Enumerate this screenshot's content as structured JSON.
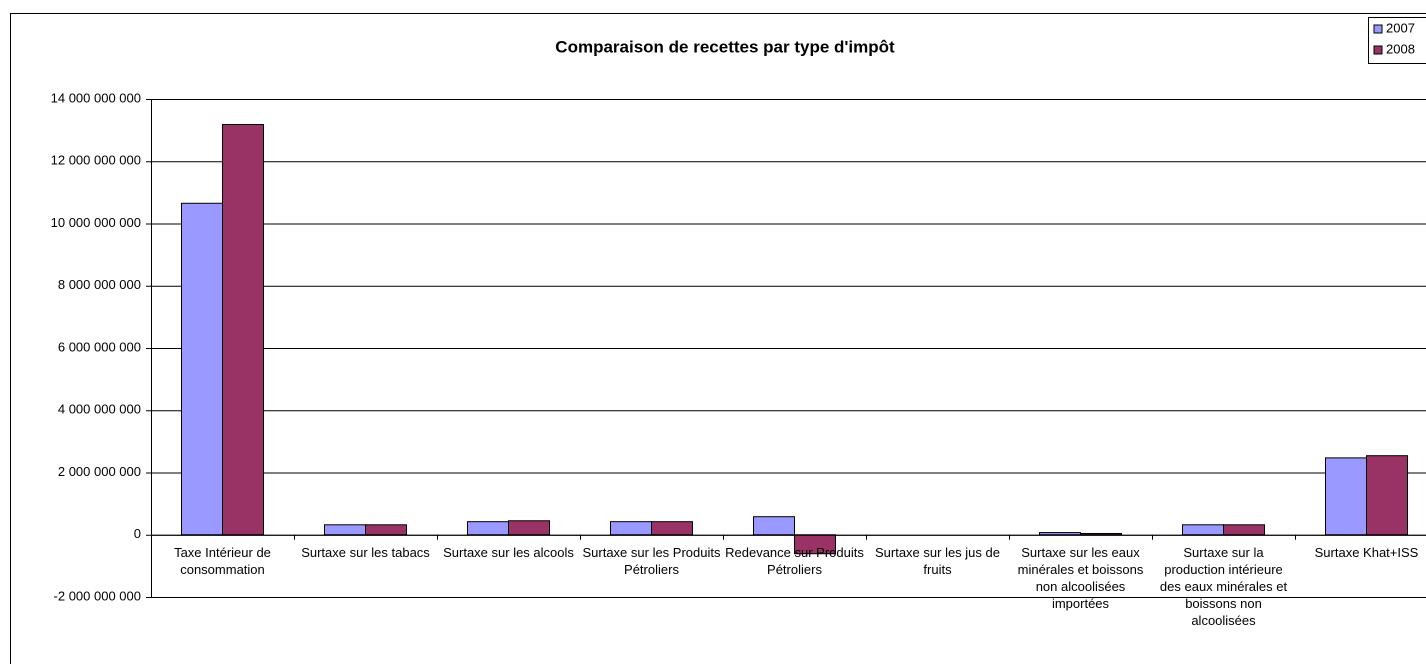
{
  "chart_data": {
    "type": "bar",
    "title": "Comparaison de recettes par type d'impôt",
    "categories": [
      "Taxe Intérieur de consommation",
      "Surtaxe sur les tabacs",
      "Surtaxe sur les alcools",
      "Surtaxe sur les Produits Pétroliers",
      "Redevance sur Produits Pétroliers",
      "Surtaxe sur les jus de fruits",
      "Surtaxe sur les eaux minérales et boissons non alcoolisées importées",
      "Surtaxe sur la production intérieure des eaux minérales et boissons non alcoolisées",
      "Surtaxe Khat+ISS"
    ],
    "series": [
      {
        "name": "2007",
        "color": "#9999ff",
        "values": [
          10650000000,
          320000000,
          420000000,
          420000000,
          580000000,
          0,
          70000000,
          320000000,
          2470000000
        ]
      },
      {
        "name": "2008",
        "color": "#993366",
        "values": [
          13180000000,
          320000000,
          450000000,
          420000000,
          -610000000,
          0,
          40000000,
          320000000,
          2540000000
        ]
      }
    ],
    "ylim": [
      -2000000000,
      14000000000
    ],
    "yticks": [
      {
        "value": -2000000000,
        "label": "-2 000 000 000"
      },
      0,
      {
        "value": 2000000000,
        "label": "2 000 000 000"
      },
      {
        "value": 4000000000,
        "label": "4 000 000 000"
      },
      {
        "value": 6000000000,
        "label": "6 000 000 000"
      },
      {
        "value": 8000000000,
        "label": "8 000 000 000"
      },
      {
        "value": 10000000000,
        "label": "10 000 000 000"
      },
      {
        "value": 12000000000,
        "label": "12 000 000 000"
      },
      {
        "value": 14000000000,
        "label": "14 000 000 000"
      }
    ],
    "grid": true,
    "legend": "top-right"
  }
}
